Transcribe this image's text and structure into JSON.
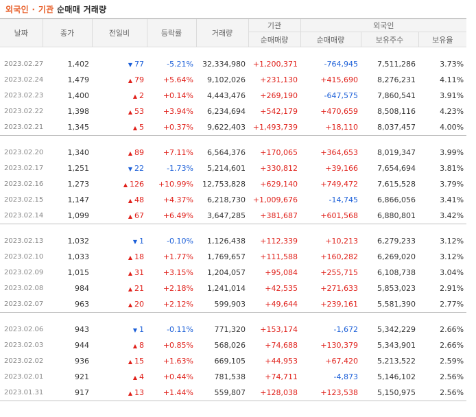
{
  "title": {
    "part1": "외국인 · 기관",
    "part2": "순매매 거래량"
  },
  "headers": {
    "date": "날짜",
    "close": "종가",
    "change": "전일비",
    "rate": "등락률",
    "volume": "거래량",
    "inst": "기관",
    "foreign": "외국인",
    "inst_net": "순매매량",
    "foreign_net": "순매매량",
    "holdings": "보유주수",
    "ratio": "보유율"
  },
  "groups": [
    [
      {
        "date": "2023.02.27",
        "close": "1,402",
        "dir": "down",
        "change": "77",
        "rate": "-5.21%",
        "volume": "32,334,980",
        "inst": "+1,200,371",
        "foreign": "-764,945",
        "holdings": "7,511,286",
        "ratio": "3.73%"
      },
      {
        "date": "2023.02.24",
        "close": "1,479",
        "dir": "up",
        "change": "79",
        "rate": "+5.64%",
        "volume": "9,102,026",
        "inst": "+231,130",
        "foreign": "+415,690",
        "holdings": "8,276,231",
        "ratio": "4.11%"
      },
      {
        "date": "2023.02.23",
        "close": "1,400",
        "dir": "up",
        "change": "2",
        "rate": "+0.14%",
        "volume": "4,443,476",
        "inst": "+269,190",
        "foreign": "-647,575",
        "holdings": "7,860,541",
        "ratio": "3.91%"
      },
      {
        "date": "2023.02.22",
        "close": "1,398",
        "dir": "up",
        "change": "53",
        "rate": "+3.94%",
        "volume": "6,234,694",
        "inst": "+542,179",
        "foreign": "+470,659",
        "holdings": "8,508,116",
        "ratio": "4.23%"
      },
      {
        "date": "2023.02.21",
        "close": "1,345",
        "dir": "up",
        "change": "5",
        "rate": "+0.37%",
        "volume": "9,622,403",
        "inst": "+1,493,739",
        "foreign": "+18,110",
        "holdings": "8,037,457",
        "ratio": "4.00%"
      }
    ],
    [
      {
        "date": "2023.02.20",
        "close": "1,340",
        "dir": "up",
        "change": "89",
        "rate": "+7.11%",
        "volume": "6,564,376",
        "inst": "+170,065",
        "foreign": "+364,653",
        "holdings": "8,019,347",
        "ratio": "3.99%"
      },
      {
        "date": "2023.02.17",
        "close": "1,251",
        "dir": "down",
        "change": "22",
        "rate": "-1.73%",
        "volume": "5,214,601",
        "inst": "+330,812",
        "foreign": "+39,166",
        "holdings": "7,654,694",
        "ratio": "3.81%"
      },
      {
        "date": "2023.02.16",
        "close": "1,273",
        "dir": "up",
        "change": "126",
        "rate": "+10.99%",
        "volume": "12,753,828",
        "inst": "+629,140",
        "foreign": "+749,472",
        "holdings": "7,615,528",
        "ratio": "3.79%"
      },
      {
        "date": "2023.02.15",
        "close": "1,147",
        "dir": "up",
        "change": "48",
        "rate": "+4.37%",
        "volume": "6,218,730",
        "inst": "+1,009,676",
        "foreign": "-14,745",
        "holdings": "6,866,056",
        "ratio": "3.41%"
      },
      {
        "date": "2023.02.14",
        "close": "1,099",
        "dir": "up",
        "change": "67",
        "rate": "+6.49%",
        "volume": "3,647,285",
        "inst": "+381,687",
        "foreign": "+601,568",
        "holdings": "6,880,801",
        "ratio": "3.42%"
      }
    ],
    [
      {
        "date": "2023.02.13",
        "close": "1,032",
        "dir": "down",
        "change": "1",
        "rate": "-0.10%",
        "volume": "1,126,438",
        "inst": "+112,339",
        "foreign": "+10,213",
        "holdings": "6,279,233",
        "ratio": "3.12%"
      },
      {
        "date": "2023.02.10",
        "close": "1,033",
        "dir": "up",
        "change": "18",
        "rate": "+1.77%",
        "volume": "1,769,657",
        "inst": "+111,588",
        "foreign": "+160,282",
        "holdings": "6,269,020",
        "ratio": "3.12%"
      },
      {
        "date": "2023.02.09",
        "close": "1,015",
        "dir": "up",
        "change": "31",
        "rate": "+3.15%",
        "volume": "1,204,057",
        "inst": "+95,084",
        "foreign": "+255,715",
        "holdings": "6,108,738",
        "ratio": "3.04%"
      },
      {
        "date": "2023.02.08",
        "close": "984",
        "dir": "up",
        "change": "21",
        "rate": "+2.18%",
        "volume": "1,241,014",
        "inst": "+42,535",
        "foreign": "+271,633",
        "holdings": "5,853,023",
        "ratio": "2.91%"
      },
      {
        "date": "2023.02.07",
        "close": "963",
        "dir": "up",
        "change": "20",
        "rate": "+2.12%",
        "volume": "599,903",
        "inst": "+49,644",
        "foreign": "+239,161",
        "holdings": "5,581,390",
        "ratio": "2.77%"
      }
    ],
    [
      {
        "date": "2023.02.06",
        "close": "943",
        "dir": "down",
        "change": "1",
        "rate": "-0.11%",
        "volume": "771,320",
        "inst": "+153,174",
        "foreign": "-1,672",
        "holdings": "5,342,229",
        "ratio": "2.66%"
      },
      {
        "date": "2023.02.03",
        "close": "944",
        "dir": "up",
        "change": "8",
        "rate": "+0.85%",
        "volume": "568,026",
        "inst": "+74,688",
        "foreign": "+130,379",
        "holdings": "5,343,901",
        "ratio": "2.66%"
      },
      {
        "date": "2023.02.02",
        "close": "936",
        "dir": "up",
        "change": "15",
        "rate": "+1.63%",
        "volume": "669,105",
        "inst": "+44,953",
        "foreign": "+67,420",
        "holdings": "5,213,522",
        "ratio": "2.59%"
      },
      {
        "date": "2023.02.01",
        "close": "921",
        "dir": "up",
        "change": "4",
        "rate": "+0.44%",
        "volume": "781,538",
        "inst": "+74,711",
        "foreign": "-4,873",
        "holdings": "5,146,102",
        "ratio": "2.56%"
      },
      {
        "date": "2023.01.31",
        "close": "917",
        "dir": "up",
        "change": "13",
        "rate": "+1.44%",
        "volume": "559,807",
        "inst": "+128,038",
        "foreign": "+123,538",
        "holdings": "5,150,975",
        "ratio": "2.56%"
      }
    ]
  ],
  "colors": {
    "up": "#e0201a",
    "down": "#1a5ed8",
    "accent": "#e8612c"
  },
  "icons": {
    "up": "triangle-up-icon",
    "down": "triangle-down-icon"
  }
}
